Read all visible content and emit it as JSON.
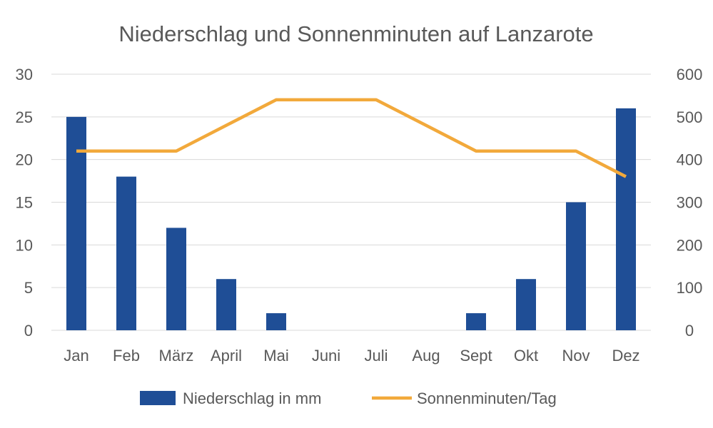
{
  "chart_data": {
    "type": "bar",
    "title": "Niederschlag und Sonnenminuten auf Lanzarote",
    "categories": [
      "Jan",
      "Feb",
      "März",
      "April",
      "Mai",
      "Juni",
      "Juli",
      "Aug",
      "Sept",
      "Okt",
      "Nov",
      "Dez"
    ],
    "series": [
      {
        "name": "Niederschlag in mm",
        "type": "bar",
        "axis": "left",
        "color": "#1f4e96",
        "values": [
          25,
          18,
          12,
          6,
          2,
          0,
          0,
          0,
          2,
          6,
          15,
          26
        ]
      },
      {
        "name": "Sonnenminuten/Tag",
        "type": "line",
        "axis": "right",
        "color": "#f2a93b",
        "values": [
          420,
          420,
          420,
          480,
          540,
          540,
          540,
          480,
          420,
          420,
          420,
          360
        ]
      }
    ],
    "y_left": {
      "min": 0,
      "max": 30,
      "ticks": [
        0,
        5,
        10,
        15,
        20,
        25,
        30
      ]
    },
    "y_right": {
      "min": 0,
      "max": 600,
      "ticks": [
        0,
        100,
        200,
        300,
        400,
        500,
        600
      ]
    },
    "grid": true,
    "legend_position": "bottom"
  }
}
